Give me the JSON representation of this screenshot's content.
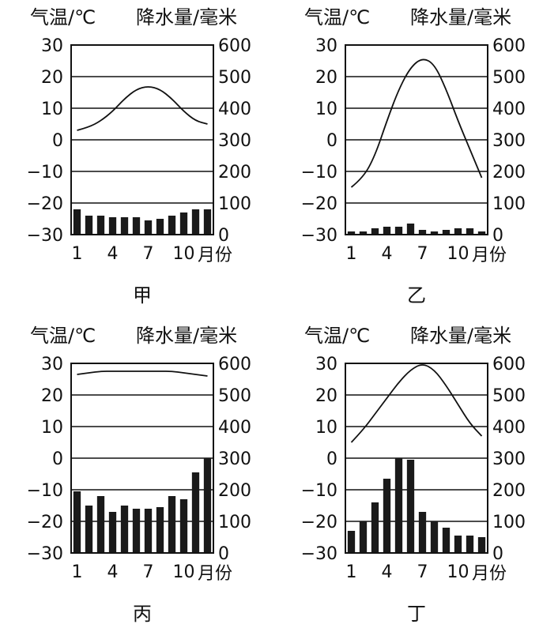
{
  "left_axis_title": "气温/℃",
  "right_axis_title": "降水量/毫米",
  "month_unit": "月份",
  "chart_data": [
    {
      "type": "bar",
      "title": "甲",
      "ylabel_left": "气温/℃",
      "ylabel_right": "降水量/毫米",
      "xlabel": "月份",
      "categories": [
        1,
        2,
        3,
        4,
        5,
        6,
        7,
        8,
        9,
        10,
        11,
        12
      ],
      "x_tick_labels": [
        "1",
        "4",
        "7",
        "10"
      ],
      "temp_ylim": [
        -30,
        30
      ],
      "temp_ticks": [
        "30",
        "20",
        "10",
        "0",
        "−10",
        "−20",
        "−30"
      ],
      "precip_ylim": [
        0,
        600
      ],
      "precip_ticks": [
        "600",
        "500",
        "400",
        "300",
        "200",
        "100",
        "0"
      ],
      "series": [
        {
          "type": "line",
          "axis": "left",
          "values": [
            3,
            4,
            6,
            9,
            13,
            16,
            17,
            16,
            13,
            9,
            6,
            5
          ]
        },
        {
          "type": "bar",
          "axis": "right",
          "values": [
            80,
            60,
            60,
            55,
            55,
            55,
            45,
            50,
            60,
            70,
            80,
            80
          ]
        }
      ]
    },
    {
      "type": "bar",
      "title": "乙",
      "ylabel_left": "气温/℃",
      "ylabel_right": "降水量/毫米",
      "xlabel": "月份",
      "categories": [
        1,
        2,
        3,
        4,
        5,
        6,
        7,
        8,
        9,
        10,
        11,
        12
      ],
      "x_tick_labels": [
        "1",
        "4",
        "7",
        "10"
      ],
      "temp_ylim": [
        -30,
        30
      ],
      "temp_ticks": [
        "30",
        "20",
        "10",
        "0",
        "−10",
        "−20",
        "−30"
      ],
      "precip_ylim": [
        0,
        600
      ],
      "precip_ticks": [
        "600",
        "500",
        "400",
        "300",
        "200",
        "100",
        "0"
      ],
      "series": [
        {
          "type": "line",
          "axis": "left",
          "values": [
            -15,
            -12,
            -5,
            6,
            16,
            23,
            26,
            24,
            16,
            6,
            -3,
            -12
          ]
        },
        {
          "type": "bar",
          "axis": "right",
          "values": [
            10,
            10,
            20,
            25,
            25,
            35,
            15,
            10,
            15,
            20,
            20,
            10
          ]
        }
      ]
    },
    {
      "type": "bar",
      "title": "丙",
      "ylabel_left": "气温/℃",
      "ylabel_right": "降水量/毫米",
      "xlabel": "月份",
      "categories": [
        1,
        2,
        3,
        4,
        5,
        6,
        7,
        8,
        9,
        10,
        11,
        12
      ],
      "x_tick_labels": [
        "1",
        "4",
        "7",
        "10"
      ],
      "temp_ylim": [
        -30,
        30
      ],
      "temp_ticks": [
        "30",
        "20",
        "10",
        "0",
        "−10",
        "−20",
        "−30"
      ],
      "precip_ylim": [
        0,
        600
      ],
      "precip_ticks": [
        "600",
        "500",
        "400",
        "300",
        "200",
        "100",
        "0"
      ],
      "series": [
        {
          "type": "line",
          "axis": "left",
          "values": [
            26.5,
            27,
            27.5,
            27.5,
            27.5,
            27.5,
            27.5,
            27.5,
            27.5,
            27,
            26.5,
            26
          ]
        },
        {
          "type": "bar",
          "axis": "right",
          "values": [
            195,
            150,
            180,
            130,
            150,
            140,
            140,
            145,
            180,
            170,
            255,
            300
          ]
        }
      ]
    },
    {
      "type": "bar",
      "title": "丁",
      "ylabel_left": "气温/℃",
      "ylabel_right": "降水量/毫米",
      "xlabel": "月份",
      "categories": [
        1,
        2,
        3,
        4,
        5,
        6,
        7,
        8,
        9,
        10,
        11,
        12
      ],
      "x_tick_labels": [
        "1",
        "4",
        "7",
        "10"
      ],
      "temp_ylim": [
        -30,
        30
      ],
      "temp_ticks": [
        "30",
        "20",
        "10",
        "0",
        "−10",
        "−20",
        "−30"
      ],
      "precip_ylim": [
        0,
        600
      ],
      "precip_ticks": [
        "600",
        "500",
        "400",
        "300",
        "200",
        "100",
        "0"
      ],
      "series": [
        {
          "type": "line",
          "axis": "left",
          "values": [
            5,
            9,
            14,
            19,
            24,
            28,
            30,
            28,
            23,
            17,
            11,
            7
          ]
        },
        {
          "type": "bar",
          "axis": "right",
          "values": [
            70,
            100,
            160,
            235,
            300,
            295,
            130,
            100,
            80,
            55,
            55,
            50
          ]
        }
      ]
    }
  ]
}
